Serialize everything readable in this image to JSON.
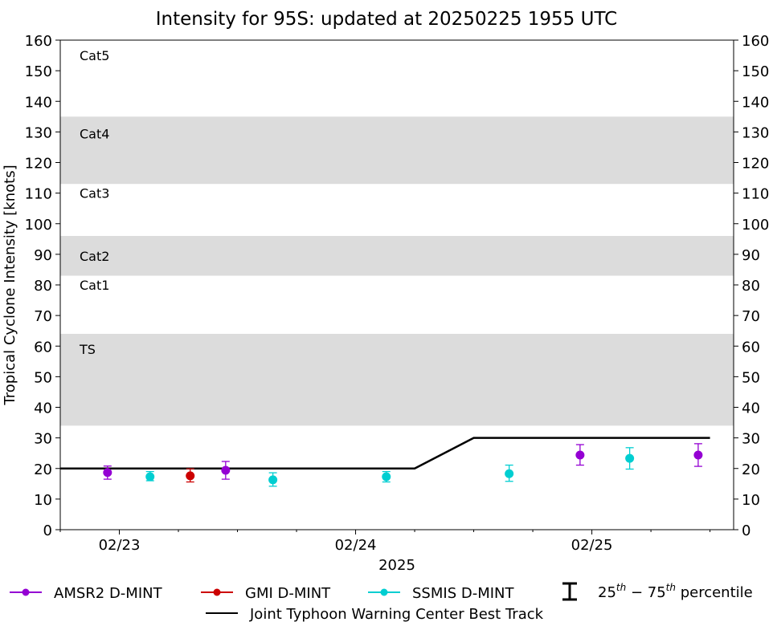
{
  "chart_data": {
    "type": "scatter",
    "title": "Intensity for 95S: updated at 20250225 1955 UTC",
    "ylabel": "Tropical Cyclone Intensity [knots]",
    "xlabel": "2025",
    "ylim": [
      0,
      160
    ],
    "xlim_days": [
      22.75,
      25.6
    ],
    "yticks": [
      0,
      10,
      20,
      30,
      40,
      50,
      60,
      70,
      80,
      90,
      100,
      110,
      120,
      130,
      140,
      150,
      160
    ],
    "xticks": [
      {
        "day": 23,
        "label": "02/23"
      },
      {
        "day": 24,
        "label": "02/24"
      },
      {
        "day": 25,
        "label": "02/25"
      }
    ],
    "minor_tick_hours": 6,
    "category_bands": [
      {
        "label": "TS",
        "y0": 34,
        "y1": 64,
        "shaded": true,
        "label_y": 59
      },
      {
        "label": "Cat1",
        "y0": 64,
        "y1": 83,
        "shaded": false,
        "label_y": 80
      },
      {
        "label": "Cat2",
        "y0": 83,
        "y1": 96,
        "shaded": true,
        "label_y": 89.5
      },
      {
        "label": "Cat3",
        "y0": 96,
        "y1": 113,
        "shaded": false,
        "label_y": 110
      },
      {
        "label": "Cat4",
        "y0": 113,
        "y1": 135,
        "shaded": true,
        "label_y": 129.5
      },
      {
        "label": "Cat5",
        "y0": 135,
        "y1": 160,
        "shaded": false,
        "label_y": 155
      }
    ],
    "series": [
      {
        "name": "AMSR2 D-MINT",
        "color": "#9400d3",
        "points": [
          {
            "day": 22.95,
            "y": 18.7,
            "p25": 16.5,
            "p75": 20.8
          },
          {
            "day": 23.45,
            "y": 19.4,
            "p25": 16.5,
            "p75": 22.3
          },
          {
            "day": 24.95,
            "y": 24.4,
            "p25": 21.1,
            "p75": 27.8
          },
          {
            "day": 25.45,
            "y": 24.4,
            "p25": 20.7,
            "p75": 28.1
          }
        ]
      },
      {
        "name": "GMI D-MINT",
        "color": "#cc0000",
        "points": [
          {
            "day": 23.3,
            "y": 17.6,
            "p25": 15.6,
            "p75": 19.9
          }
        ]
      },
      {
        "name": "SSMIS D-MINT",
        "color": "#00ced1",
        "points": [
          {
            "day": 23.13,
            "y": 17.3,
            "p25": 16.0,
            "p75": 19.0
          },
          {
            "day": 23.65,
            "y": 16.3,
            "p25": 14.2,
            "p75": 18.6
          },
          {
            "day": 24.13,
            "y": 17.3,
            "p25": 15.6,
            "p75": 19.0
          },
          {
            "day": 24.65,
            "y": 18.3,
            "p25": 15.8,
            "p75": 21.1
          },
          {
            "day": 25.16,
            "y": 23.3,
            "p25": 19.8,
            "p75": 26.8
          }
        ]
      }
    ],
    "best_track": {
      "name": "Joint Typhoon Warning Center Best Track",
      "color": "#000000",
      "points": [
        {
          "day": 22.75,
          "y": 20
        },
        {
          "day": 24.25,
          "y": 20
        },
        {
          "day": 24.5,
          "y": 30
        },
        {
          "day": 25.5,
          "y": 30
        }
      ]
    },
    "legend": {
      "placement": "bottom",
      "items": [
        {
          "label": "AMSR2 D-MINT",
          "color": "#9400d3"
        },
        {
          "label": "GMI D-MINT",
          "color": "#cc0000"
        },
        {
          "label": "SSMIS D-MINT",
          "color": "#00ced1"
        }
      ],
      "percentile": {
        "base": "25",
        "sup1": "th",
        "mid": " − 75",
        "sup2": "th",
        "tail": " percentile"
      },
      "best_track_label": "Joint Typhoon Warning Center Best Track"
    }
  }
}
